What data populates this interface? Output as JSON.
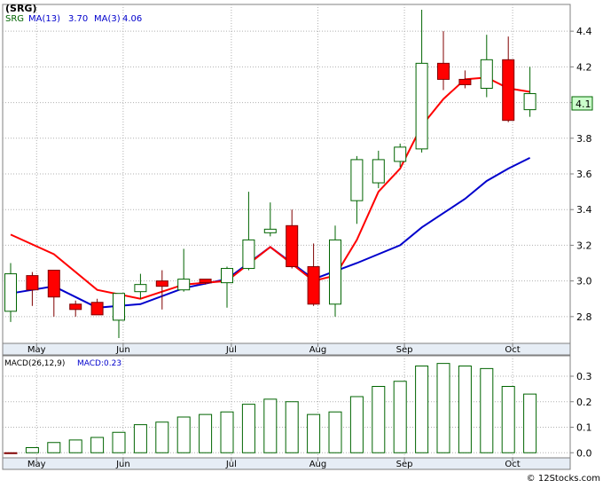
{
  "price_legend": {
    "symbol": "(SRG)",
    "ma13_label": "MA(13)",
    "ma13_value": "3.70",
    "ma3_label": "MA(3)",
    "ma3_value": "4.06"
  },
  "macd_legend": {
    "label": "MACD(26,12,9)",
    "value_label": "MACD:0.23"
  },
  "last_price_tag": "4.1",
  "watermark": "© 12Stocks.com",
  "colors": {
    "up_fill": "#ffffff",
    "up_stroke": "#006400",
    "down_fill": "#ff0000",
    "down_stroke": "#800000",
    "ma13": "#0000cc",
    "ma3": "#ff0000",
    "macd_bar": "#006400",
    "axis_bg": "#e6edf5",
    "grid": "#b0b0b0"
  },
  "chart_data": [
    {
      "type": "candlestick",
      "title": "(SRG)",
      "ylim": [
        2.65,
        4.55
      ],
      "yticks": [
        2.8,
        3.0,
        3.2,
        3.4,
        3.6,
        3.8,
        4.0,
        4.2,
        4.4
      ],
      "ytick_labels": [
        "2.8",
        "3.0",
        "3.2",
        "3.4",
        "3.6",
        "3.8",
        "4.0",
        "4.2",
        "4.4"
      ],
      "x_month_labels": [
        "May",
        "Jun",
        "Jul",
        "Aug",
        "Sep",
        "Oct"
      ],
      "x_month_positions": [
        1.2,
        5.2,
        10.2,
        14.2,
        18.2,
        23.2
      ],
      "grid": true,
      "candles": [
        {
          "o": 2.83,
          "h": 3.1,
          "l": 2.77,
          "c": 3.04
        },
        {
          "o": 3.03,
          "h": 3.05,
          "l": 2.86,
          "c": 2.95
        },
        {
          "o": 3.06,
          "h": 3.06,
          "l": 2.8,
          "c": 2.91
        },
        {
          "o": 2.87,
          "h": 2.89,
          "l": 2.8,
          "c": 2.84
        },
        {
          "o": 2.88,
          "h": 2.9,
          "l": 2.81,
          "c": 2.81
        },
        {
          "o": 2.78,
          "h": 2.93,
          "l": 2.68,
          "c": 2.93
        },
        {
          "o": 2.94,
          "h": 3.04,
          "l": 2.9,
          "c": 2.98
        },
        {
          "o": 3.0,
          "h": 3.06,
          "l": 2.84,
          "c": 2.97
        },
        {
          "o": 2.95,
          "h": 3.18,
          "l": 2.94,
          "c": 3.01
        },
        {
          "o": 3.01,
          "h": 3.01,
          "l": 2.98,
          "c": 2.99
        },
        {
          "o": 2.99,
          "h": 3.08,
          "l": 2.85,
          "c": 3.07
        },
        {
          "o": 3.07,
          "h": 3.5,
          "l": 3.06,
          "c": 3.23
        },
        {
          "o": 3.27,
          "h": 3.44,
          "l": 3.25,
          "c": 3.29
        },
        {
          "o": 3.31,
          "h": 3.4,
          "l": 3.07,
          "c": 3.08
        },
        {
          "o": 3.08,
          "h": 3.21,
          "l": 2.86,
          "c": 2.87
        },
        {
          "o": 2.87,
          "h": 3.31,
          "l": 2.8,
          "c": 3.23
        },
        {
          "o": 3.45,
          "h": 3.7,
          "l": 3.32,
          "c": 3.68
        },
        {
          "o": 3.55,
          "h": 3.73,
          "l": 3.52,
          "c": 3.68
        },
        {
          "o": 3.67,
          "h": 3.77,
          "l": 3.64,
          "c": 3.75
        },
        {
          "o": 3.74,
          "h": 4.52,
          "l": 3.72,
          "c": 4.22
        },
        {
          "o": 4.22,
          "h": 4.4,
          "l": 4.07,
          "c": 4.13
        },
        {
          "o": 4.13,
          "h": 4.18,
          "l": 4.08,
          "c": 4.1
        },
        {
          "o": 4.08,
          "h": 4.38,
          "l": 4.03,
          "c": 4.24
        },
        {
          "o": 4.24,
          "h": 4.37,
          "l": 3.89,
          "c": 3.9
        },
        {
          "o": 3.96,
          "h": 4.2,
          "l": 3.92,
          "c": 4.05
        }
      ],
      "series": [
        {
          "name": "MA(13)",
          "x": [
            0,
            2,
            4,
            6,
            8,
            10,
            12,
            14,
            16,
            18,
            19,
            20,
            21,
            22,
            23,
            24
          ],
          "values": [
            2.93,
            2.97,
            2.85,
            2.87,
            2.96,
            3.01,
            3.19,
            3.01,
            3.1,
            3.2,
            3.3,
            3.38,
            3.46,
            3.56,
            3.63,
            3.69
          ]
        },
        {
          "name": "MA(3)",
          "x": [
            0,
            2,
            4,
            6,
            8,
            10,
            12,
            14,
            15,
            16,
            17,
            18,
            19,
            20,
            21,
            22,
            23,
            24
          ],
          "values": [
            3.26,
            3.15,
            2.95,
            2.9,
            2.98,
            3.0,
            3.19,
            3.0,
            3.03,
            3.23,
            3.5,
            3.63,
            3.87,
            4.02,
            4.13,
            4.14,
            4.08,
            4.06
          ]
        }
      ]
    },
    {
      "type": "bar",
      "title": "MACD(26,12,9)",
      "ylim": [
        -0.02,
        0.38
      ],
      "yticks": [
        0.0,
        0.1,
        0.2,
        0.3
      ],
      "ytick_labels": [
        "0.0",
        "0.1",
        "0.2",
        "0.3"
      ],
      "x_month_labels": [
        "May",
        "Jun",
        "Jul",
        "Aug",
        "Sep",
        "Oct"
      ],
      "values": [
        0.0,
        0.02,
        0.04,
        0.05,
        0.06,
        0.08,
        0.11,
        0.12,
        0.14,
        0.15,
        0.16,
        0.19,
        0.21,
        0.2,
        0.15,
        0.16,
        0.22,
        0.26,
        0.28,
        0.34,
        0.35,
        0.34,
        0.33,
        0.26,
        0.23
      ]
    }
  ]
}
